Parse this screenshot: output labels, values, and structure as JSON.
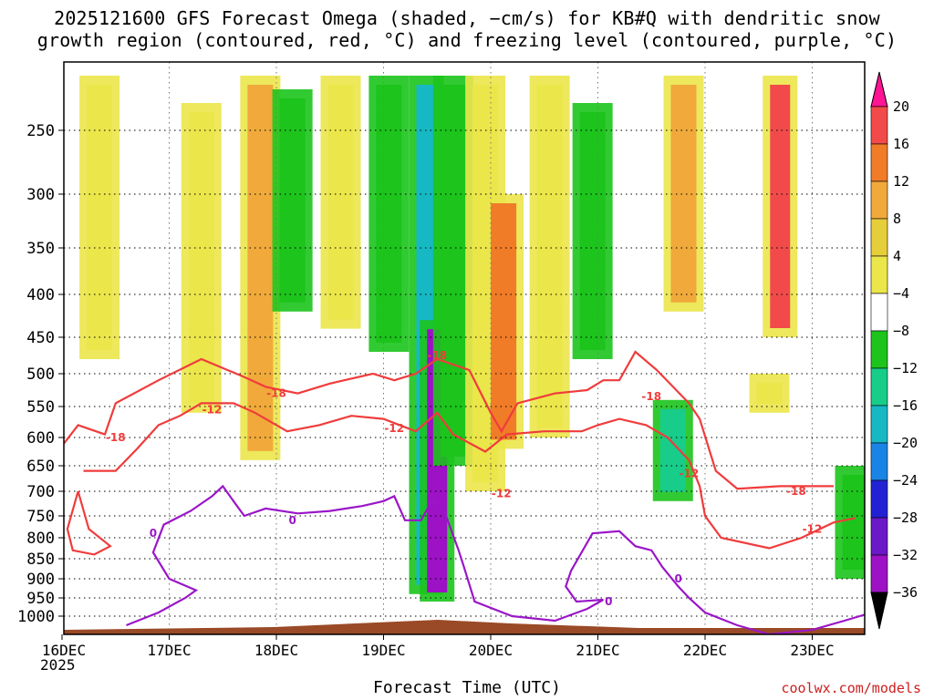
{
  "title_line1": "2025121600 GFS Forecast Omega (shaded, −cm/s) for KB#Q with dendritic snow",
  "title_line2": "growth region (contoured, red, °C) and freezing level (contoured, purple, °C)",
  "credit": "coolwx.com/models",
  "chart_data": {
    "type": "heatmap",
    "title": "2025121600 GFS Forecast Omega (shaded, −cm/s) for KB#Q with dendritic snow growth region (contoured, red, °C) and freezing level (contoured, purple, °C)",
    "xlabel": "Forecast Time (UTC)",
    "ylabel": "Pressure (hPa)",
    "x_ticks": [
      "16DEC",
      "17DEC",
      "18DEC",
      "19DEC",
      "20DEC",
      "21DEC",
      "22DEC",
      "23DEC"
    ],
    "x_year": "2025",
    "xlim_days": [
      0,
      7.5
    ],
    "y_ticks": [
      250,
      300,
      350,
      400,
      450,
      500,
      550,
      600,
      650,
      700,
      750,
      800,
      850,
      900,
      950,
      1000
    ],
    "ylim": [
      200,
      1020
    ],
    "colorbar": {
      "ticks": [
        "20",
        "16",
        "12",
        "8",
        "4",
        "−4",
        "−8",
        "−12",
        "−16",
        "−20",
        "−24",
        "−28",
        "−32",
        "−36"
      ],
      "colors": [
        "#ff1493",
        "#f24a4a",
        "#f07c28",
        "#f0a93a",
        "#e6cd3a",
        "#ebe64a",
        "#ffffff",
        "#1cc41c",
        "#18cc8a",
        "#16b8c4",
        "#1a84e6",
        "#2222d4",
        "#6a18c8",
        "#9c12c4",
        "#a8a8a8",
        "#000000"
      ]
    },
    "omega_features": [
      {
        "day": 0.35,
        "p_top": 210,
        "p_bot": 480,
        "value": 6
      },
      {
        "day": 1.3,
        "p_top": 230,
        "p_bot": 560,
        "value": 5
      },
      {
        "day": 1.85,
        "p_top": 210,
        "p_bot": 640,
        "value": 9
      },
      {
        "day": 2.15,
        "p_top": 220,
        "p_bot": 420,
        "value": -8
      },
      {
        "day": 2.6,
        "p_top": 210,
        "p_bot": 440,
        "value": 4
      },
      {
        "day": 3.05,
        "p_top": 210,
        "p_bot": 470,
        "value": -8
      },
      {
        "day": 3.4,
        "p_top": 210,
        "p_bot": 940,
        "value": -16
      },
      {
        "day": 3.5,
        "p_top": 430,
        "p_bot": 960,
        "value": -28
      },
      {
        "day": 3.65,
        "p_top": 210,
        "p_bot": 650,
        "value": -10
      },
      {
        "day": 3.95,
        "p_top": 210,
        "p_bot": 700,
        "value": 5
      },
      {
        "day": 4.12,
        "p_top": 300,
        "p_bot": 620,
        "value": 12
      },
      {
        "day": 4.55,
        "p_top": 210,
        "p_bot": 600,
        "value": 5
      },
      {
        "day": 4.95,
        "p_top": 230,
        "p_bot": 480,
        "value": -9
      },
      {
        "day": 5.8,
        "p_top": 210,
        "p_bot": 420,
        "value": 8
      },
      {
        "day": 5.7,
        "p_top": 540,
        "p_bot": 720,
        "value": -12
      },
      {
        "day": 6.7,
        "p_top": 210,
        "p_bot": 450,
        "value": 18
      },
      {
        "day": 6.6,
        "p_top": 500,
        "p_bot": 560,
        "value": 6
      },
      {
        "day": 7.4,
        "p_top": 650,
        "p_bot": 900,
        "value": -10
      }
    ],
    "contours": [
      {
        "label": "-18",
        "color": "red",
        "points": [
          [
            0,
            615
          ],
          [
            0.15,
            580
          ],
          [
            0.4,
            595
          ],
          [
            0.5,
            545
          ],
          [
            0.9,
            510
          ],
          [
            1.3,
            480
          ],
          [
            1.7,
            505
          ],
          [
            1.9,
            520
          ],
          [
            2.2,
            530
          ],
          [
            2.5,
            515
          ],
          [
            2.9,
            500
          ],
          [
            3.1,
            510
          ],
          [
            3.3,
            500
          ],
          [
            3.5,
            480
          ],
          [
            3.8,
            495
          ],
          [
            4.0,
            560
          ],
          [
            4.1,
            590
          ],
          [
            4.25,
            545
          ],
          [
            4.6,
            530
          ],
          [
            4.9,
            525
          ],
          [
            5.05,
            510
          ],
          [
            5.2,
            510
          ],
          [
            5.35,
            470
          ],
          [
            5.55,
            495
          ],
          [
            5.85,
            545
          ],
          [
            5.95,
            570
          ],
          [
            6.1,
            660
          ],
          [
            6.3,
            695
          ],
          [
            6.7,
            690
          ],
          [
            7.0,
            690
          ],
          [
            7.2,
            690
          ]
        ]
      },
      {
        "label": "-12",
        "color": "red",
        "points": [
          [
            0.2,
            660
          ],
          [
            0.5,
            660
          ],
          [
            0.7,
            620
          ],
          [
            0.9,
            580
          ],
          [
            1.1,
            565
          ],
          [
            1.3,
            545
          ],
          [
            1.6,
            545
          ],
          [
            1.8,
            560
          ],
          [
            2.1,
            590
          ],
          [
            2.4,
            580
          ],
          [
            2.7,
            565
          ],
          [
            3.0,
            570
          ],
          [
            3.3,
            590
          ],
          [
            3.5,
            560
          ],
          [
            3.65,
            595
          ],
          [
            3.95,
            625
          ],
          [
            4.15,
            595
          ],
          [
            4.5,
            590
          ],
          [
            4.85,
            590
          ],
          [
            5.0,
            580
          ],
          [
            5.2,
            570
          ],
          [
            5.45,
            580
          ],
          [
            5.65,
            600
          ],
          [
            5.85,
            640
          ],
          [
            5.95,
            690
          ],
          [
            6.0,
            750
          ],
          [
            6.15,
            800
          ],
          [
            6.6,
            825
          ],
          [
            6.9,
            800
          ],
          [
            7.2,
            765
          ],
          [
            7.4,
            755
          ]
        ]
      },
      {
        "label": "-18",
        "color": "red",
        "points": [
          [
            0.15,
            700
          ],
          [
            0.25,
            780
          ],
          [
            0.45,
            820
          ],
          [
            0.3,
            840
          ],
          [
            0.1,
            830
          ],
          [
            0.05,
            780
          ],
          [
            0.15,
            700
          ]
        ]
      },
      {
        "label": "0",
        "color": "purple",
        "points": [
          [
            0.6,
            1010
          ],
          [
            0.9,
            990
          ],
          [
            1.15,
            950
          ],
          [
            1.25,
            930
          ],
          [
            1.0,
            900
          ],
          [
            0.85,
            835
          ],
          [
            0.95,
            770
          ],
          [
            1.2,
            740
          ],
          [
            1.4,
            710
          ],
          [
            1.5,
            690
          ],
          [
            1.6,
            720
          ],
          [
            1.7,
            750
          ],
          [
            1.9,
            735
          ],
          [
            2.2,
            745
          ],
          [
            2.5,
            740
          ],
          [
            2.8,
            730
          ],
          [
            3.0,
            720
          ],
          [
            3.1,
            710
          ],
          [
            3.2,
            760
          ],
          [
            3.35,
            760
          ],
          [
            3.45,
            720
          ],
          [
            3.55,
            730
          ],
          [
            3.7,
            830
          ],
          [
            3.75,
            870
          ],
          [
            3.85,
            960
          ],
          [
            4.2,
            1000
          ],
          [
            4.6,
            1005
          ],
          [
            4.9,
            980
          ],
          [
            5.05,
            955
          ],
          [
            4.8,
            960
          ],
          [
            4.7,
            920
          ],
          [
            4.75,
            880
          ],
          [
            4.95,
            790
          ],
          [
            5.2,
            785
          ],
          [
            5.35,
            820
          ],
          [
            5.5,
            830
          ],
          [
            5.6,
            870
          ],
          [
            5.75,
            920
          ],
          [
            5.85,
            950
          ],
          [
            6.0,
            990
          ],
          [
            6.3,
            1010
          ],
          [
            6.6,
            1020
          ],
          [
            7.0,
            1015
          ],
          [
            7.3,
            1005
          ],
          [
            7.5,
            995
          ]
        ]
      }
    ],
    "contour_labels": [
      {
        "text": "-18",
        "day": 2.0,
        "p": 530
      },
      {
        "text": "-12",
        "day": 1.4,
        "p": 555
      },
      {
        "text": "-18",
        "day": 0.5,
        "p": 600
      },
      {
        "text": "-18",
        "day": 3.5,
        "p": 475
      },
      {
        "text": "-12",
        "day": 3.1,
        "p": 585
      },
      {
        "text": "-12",
        "day": 4.1,
        "p": 705
      },
      {
        "text": "-18",
        "day": 5.5,
        "p": 535
      },
      {
        "text": "-12",
        "day": 5.85,
        "p": 665
      },
      {
        "text": "-18",
        "day": 6.85,
        "p": 700
      },
      {
        "text": "-12",
        "day": 7.0,
        "p": 780
      },
      {
        "text": "0",
        "day": 0.85,
        "p": 790
      },
      {
        "text": "0",
        "day": 2.15,
        "p": 760
      },
      {
        "text": "0",
        "day": 3.45,
        "p": 725
      },
      {
        "text": "0",
        "day": 5.1,
        "p": 960
      },
      {
        "text": "0",
        "day": 5.75,
        "p": 900
      }
    ],
    "terrain_top_hpa": 1012
  }
}
